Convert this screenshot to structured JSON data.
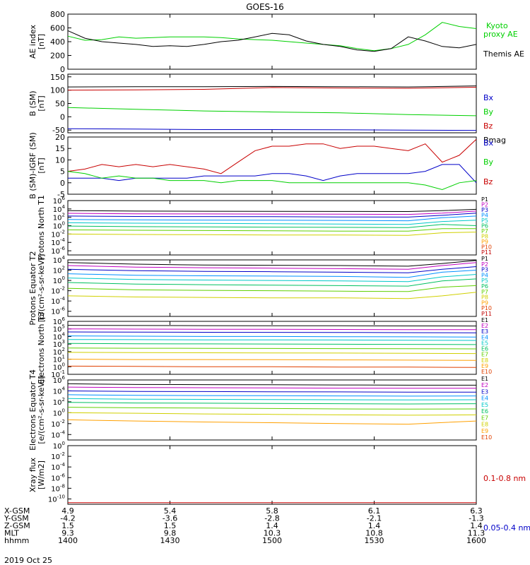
{
  "title": "GOES-16",
  "date_label": "2019 Oct 25",
  "colors": {
    "black": "#000000",
    "green": "#00d000",
    "blue": "#0000c8",
    "red": "#c80000"
  },
  "footer": {
    "rows": [
      {
        "label": "X-GSM",
        "values": [
          "4.9",
          "5.4",
          "5.8",
          "6.1",
          "6.3"
        ]
      },
      {
        "label": "Y-GSM",
        "values": [
          "-4.2",
          "-3.6",
          "-2.8",
          "-2.1",
          "-1.3"
        ]
      },
      {
        "label": "Z-GSM",
        "values": [
          "1.5",
          "1.5",
          "1.4",
          "1.4",
          "1.4"
        ]
      },
      {
        "label": "MLT",
        "values": [
          "9.3",
          "9.8",
          "10.3",
          "10.8",
          "11.3"
        ]
      },
      {
        "label": "hhmm",
        "values": [
          "1400",
          "1430",
          "1500",
          "1530",
          "1600"
        ]
      }
    ]
  },
  "chart_data": [
    {
      "type": "line",
      "ylabel": "AE index [nT]",
      "ylim": [
        0,
        800
      ],
      "yticks": [
        "800",
        "600",
        "400",
        "200",
        "0"
      ],
      "legend": [
        "Kyoto proxy AE",
        "Themis AE"
      ],
      "x": [
        0,
        5,
        10,
        15,
        20,
        25,
        30,
        35,
        40,
        45,
        50,
        55,
        60,
        65,
        70,
        75,
        80,
        85,
        90,
        95,
        100,
        105,
        110,
        115,
        120
      ],
      "series": [
        {
          "name": "Kyoto proxy AE",
          "color": "green",
          "values": [
            480,
            420,
            430,
            470,
            450,
            460,
            470,
            470,
            470,
            460,
            440,
            430,
            420,
            400,
            380,
            360,
            340,
            300,
            270,
            300,
            360,
            500,
            680,
            620,
            590
          ]
        },
        {
          "name": "Themis AE",
          "color": "black",
          "values": [
            560,
            450,
            400,
            380,
            360,
            330,
            340,
            330,
            360,
            400,
            420,
            470,
            520,
            500,
            410,
            360,
            330,
            280,
            260,
            300,
            470,
            410,
            330,
            310,
            360
          ]
        }
      ]
    },
    {
      "type": "line",
      "ylabel": "B (SM) [nT]",
      "ylim": [
        -60,
        160
      ],
      "yticks": [
        "150",
        "100",
        "50",
        "0",
        "-50"
      ],
      "legend": [
        "Bx",
        "By",
        "Bz",
        "Bmag"
      ],
      "x": [
        0,
        20,
        40,
        60,
        80,
        100,
        120
      ],
      "series": [
        {
          "name": "Bmag",
          "color": "black",
          "values": [
            112,
            113,
            113,
            114,
            113,
            112,
            116
          ]
        },
        {
          "name": "Bz",
          "color": "red",
          "values": [
            100,
            101,
            103,
            110,
            108,
            107,
            111
          ]
        },
        {
          "name": "By",
          "color": "green",
          "values": [
            35,
            28,
            22,
            18,
            15,
            8,
            4
          ]
        },
        {
          "name": "Bx",
          "color": "blue",
          "values": [
            -45,
            -46,
            -48,
            -48,
            -49,
            -50,
            -51
          ]
        }
      ]
    },
    {
      "type": "line",
      "ylabel": "B (SM)-IGRF (SM) [nT]",
      "ylim": [
        -5,
        20
      ],
      "yticks": [
        "20",
        "15",
        "10",
        "5",
        "0",
        "-5"
      ],
      "legend": [
        "Bx",
        "By",
        "Bz"
      ],
      "x": [
        0,
        5,
        10,
        15,
        20,
        25,
        30,
        35,
        40,
        45,
        50,
        55,
        60,
        65,
        70,
        75,
        80,
        85,
        90,
        95,
        100,
        105,
        110,
        115,
        120
      ],
      "series": [
        {
          "name": "Bz",
          "color": "red",
          "values": [
            5,
            6,
            8,
            7,
            8,
            7,
            8,
            7,
            6,
            4,
            9,
            14,
            16,
            16,
            17,
            17,
            15,
            16,
            16,
            15,
            14,
            17,
            9,
            12,
            19
          ]
        },
        {
          "name": "Bx",
          "color": "blue",
          "values": [
            2,
            2,
            2,
            1,
            2,
            2,
            2,
            2,
            3,
            3,
            3,
            3,
            4,
            4,
            3,
            1,
            3,
            4,
            4,
            4,
            4,
            5,
            8,
            8,
            0
          ]
        },
        {
          "name": "By",
          "color": "green",
          "values": [
            5,
            4,
            2,
            3,
            2,
            2,
            1,
            1,
            1,
            0,
            1,
            1,
            1,
            0,
            0,
            0,
            0,
            0,
            0,
            0,
            0,
            -1,
            -3,
            0,
            1
          ]
        }
      ]
    },
    {
      "type": "line",
      "scale": "log",
      "ylabel": "Protons North T1",
      "ylim": [
        1e-07,
        1000000.0
      ],
      "ytick_exp": [
        6,
        4,
        2,
        0,
        -2,
        -4,
        -6
      ],
      "legend": [
        "P1",
        "P2",
        "P3",
        "P4",
        "P5",
        "P6",
        "P7",
        "P8",
        "P9",
        "P10",
        "P11"
      ],
      "x": [
        0,
        20,
        40,
        60,
        80,
        100,
        110,
        120
      ],
      "series": [
        {
          "name": "P1",
          "values": [
            4000,
            3000,
            2800,
            2700,
            2500,
            2400,
            4000,
            8000
          ]
        },
        {
          "name": "P2",
          "values": [
            900,
            700,
            650,
            600,
            550,
            500,
            1000,
            3000
          ]
        },
        {
          "name": "P3",
          "values": [
            200,
            160,
            150,
            140,
            120,
            110,
            300,
            1000
          ]
        },
        {
          "name": "P4",
          "values": [
            30,
            25,
            22,
            20,
            18,
            15,
            80,
            200
          ]
        },
        {
          "name": "P5",
          "values": [
            5,
            4,
            3.5,
            3,
            2.5,
            2,
            10,
            20
          ]
        },
        {
          "name": "P6",
          "values": [
            0.8,
            0.6,
            0.5,
            0.45,
            0.4,
            0.35,
            2,
            1
          ]
        },
        {
          "name": "P7",
          "values": [
            0.1,
            0.08,
            0.07,
            0.06,
            0.05,
            0.05,
            0.2,
            0.2
          ]
        },
        {
          "name": "P8",
          "values": [
            0.01,
            0.008,
            0.007,
            0.006,
            0.006,
            0.005,
            0.02,
            0.03
          ]
        }
      ]
    },
    {
      "type": "line",
      "scale": "log",
      "ylabel": "Protons Equator T2 [p/(cm²-s-sr-keV)]",
      "ylim": [
        1e-07,
        10000.0
      ],
      "ytick_exp": [
        4,
        2,
        0,
        -2,
        -4,
        -6
      ],
      "legend": [
        "P1",
        "P2",
        "P3",
        "P4",
        "P5",
        "P6",
        "P7",
        "P8",
        "P9",
        "P10",
        "P11"
      ],
      "x": [
        0,
        20,
        40,
        60,
        80,
        100,
        110,
        120
      ],
      "series": [
        {
          "name": "P1",
          "values": [
            3000,
            1500,
            1000,
            900,
            800,
            600,
            2000,
            8000
          ]
        },
        {
          "name": "P2",
          "values": [
            800,
            400,
            300,
            250,
            200,
            150,
            800,
            3000
          ]
        },
        {
          "name": "P3",
          "values": [
            150,
            80,
            60,
            50,
            40,
            30,
            150,
            500
          ]
        },
        {
          "name": "P4",
          "values": [
            20,
            10,
            8,
            7,
            6,
            4,
            40,
            100
          ]
        },
        {
          "name": "P5",
          "values": [
            3,
            1.5,
            1.2,
            1,
            0.8,
            0.6,
            5,
            15
          ]
        },
        {
          "name": "P6",
          "values": [
            0.4,
            0.2,
            0.15,
            0.12,
            0.1,
            0.08,
            0.8,
            2
          ]
        },
        {
          "name": "P7",
          "values": [
            0.03,
            0.015,
            0.012,
            0.01,
            0.008,
            0.007,
            0.05,
            0.1
          ]
        },
        {
          "name": "P8",
          "values": [
            0.001,
            0.0006,
            0.0005,
            0.0004,
            0.0004,
            0.0003,
            0.001,
            0.005
          ]
        }
      ]
    },
    {
      "type": "line",
      "scale": "log",
      "ylabel": "Electrons North T3",
      "ylim": [
        0.1,
        1000000.0
      ],
      "ytick_exp": [
        6,
        5,
        4,
        3,
        2,
        1,
        0,
        -1
      ],
      "legend": [
        "E1",
        "E2",
        "E3",
        "E4",
        "E5",
        "E6",
        "E7",
        "E8",
        "E9",
        "E10"
      ],
      "x": [
        0,
        20,
        40,
        60,
        80,
        100,
        120
      ],
      "series": [
        {
          "name": "E1",
          "values": [
            300000,
            280000,
            270000,
            260000,
            260000,
            250000,
            240000
          ]
        },
        {
          "name": "E2",
          "values": [
            100000,
            95000,
            90000,
            88000,
            85000,
            80000,
            80000
          ]
        },
        {
          "name": "E3",
          "values": [
            40000,
            38000,
            36000,
            35000,
            34000,
            32000,
            30000
          ]
        },
        {
          "name": "E4",
          "values": [
            12000,
            11000,
            10000,
            10000,
            9500,
            9000,
            8500
          ]
        },
        {
          "name": "E5",
          "values": [
            4000,
            3800,
            3600,
            3500,
            3400,
            3200,
            3000
          ]
        },
        {
          "name": "E6",
          "values": [
            1200,
            1100,
            1050,
            1000,
            950,
            900,
            850
          ]
        },
        {
          "name": "E7",
          "values": [
            300,
            280,
            270,
            260,
            250,
            240,
            230
          ]
        },
        {
          "name": "E8",
          "values": [
            80,
            75,
            70,
            68,
            65,
            60,
            55
          ]
        },
        {
          "name": "E9",
          "values": [
            10,
            9,
            9,
            8.5,
            8,
            7.5,
            7
          ]
        },
        {
          "name": "E10",
          "values": [
            1.2,
            1.1,
            1,
            1,
            0.9,
            0.9,
            0.8
          ]
        }
      ]
    },
    {
      "type": "line",
      "scale": "log",
      "ylabel": "Electrons Equator T4 [e/(cm²-s-sr-keV)]",
      "ylim": [
        1e-05,
        1000000.0
      ],
      "ytick_exp": [
        6,
        4,
        2,
        0,
        -2,
        -4
      ],
      "legend": [
        "E1",
        "E2",
        "E3",
        "E4",
        "E5",
        "E6",
        "E7",
        "E8",
        "E9",
        "E10"
      ],
      "x": [
        0,
        20,
        40,
        60,
        80,
        100,
        120
      ],
      "series": [
        {
          "name": "E1",
          "values": [
            200000,
            150000,
            140000,
            130000,
            120000,
            110000,
            110000
          ]
        },
        {
          "name": "E2",
          "values": [
            50000,
            40000,
            38000,
            35000,
            32000,
            30000,
            30000
          ]
        },
        {
          "name": "E3",
          "values": [
            10000,
            8000,
            7500,
            7000,
            6500,
            6000,
            6000
          ]
        },
        {
          "name": "E4",
          "values": [
            2000,
            1500,
            1400,
            1300,
            1200,
            1100,
            1200
          ]
        },
        {
          "name": "E5",
          "values": [
            400,
            300,
            280,
            260,
            240,
            220,
            240
          ]
        },
        {
          "name": "E6",
          "values": [
            80,
            60,
            55,
            50,
            45,
            40,
            45
          ]
        },
        {
          "name": "E7",
          "values": [
            10,
            8,
            7,
            6,
            5,
            4.5,
            5
          ]
        },
        {
          "name": "E8",
          "values": [
            1,
            0.8,
            0.6,
            0.5,
            0.4,
            0.35,
            0.4
          ]
        },
        {
          "name": "E9",
          "values": [
            0.05,
            0.03,
            0.02,
            0.015,
            0.01,
            0.008,
            0.03
          ]
        }
      ]
    },
    {
      "type": "line",
      "scale": "log",
      "ylabel": "Xray flux [W/m2]",
      "ylim": [
        1e-11,
        1
      ],
      "ytick_exp": [
        0,
        -2,
        -4,
        -6,
        -8,
        -10
      ],
      "legend": [
        "0.1-0.8 nm",
        "0.05-0.4 nm"
      ],
      "x": [
        0,
        120
      ],
      "series": [
        {
          "name": "0.1-0.8 nm",
          "color": "red",
          "values": [
            2e-11,
            2e-11
          ]
        }
      ]
    }
  ]
}
